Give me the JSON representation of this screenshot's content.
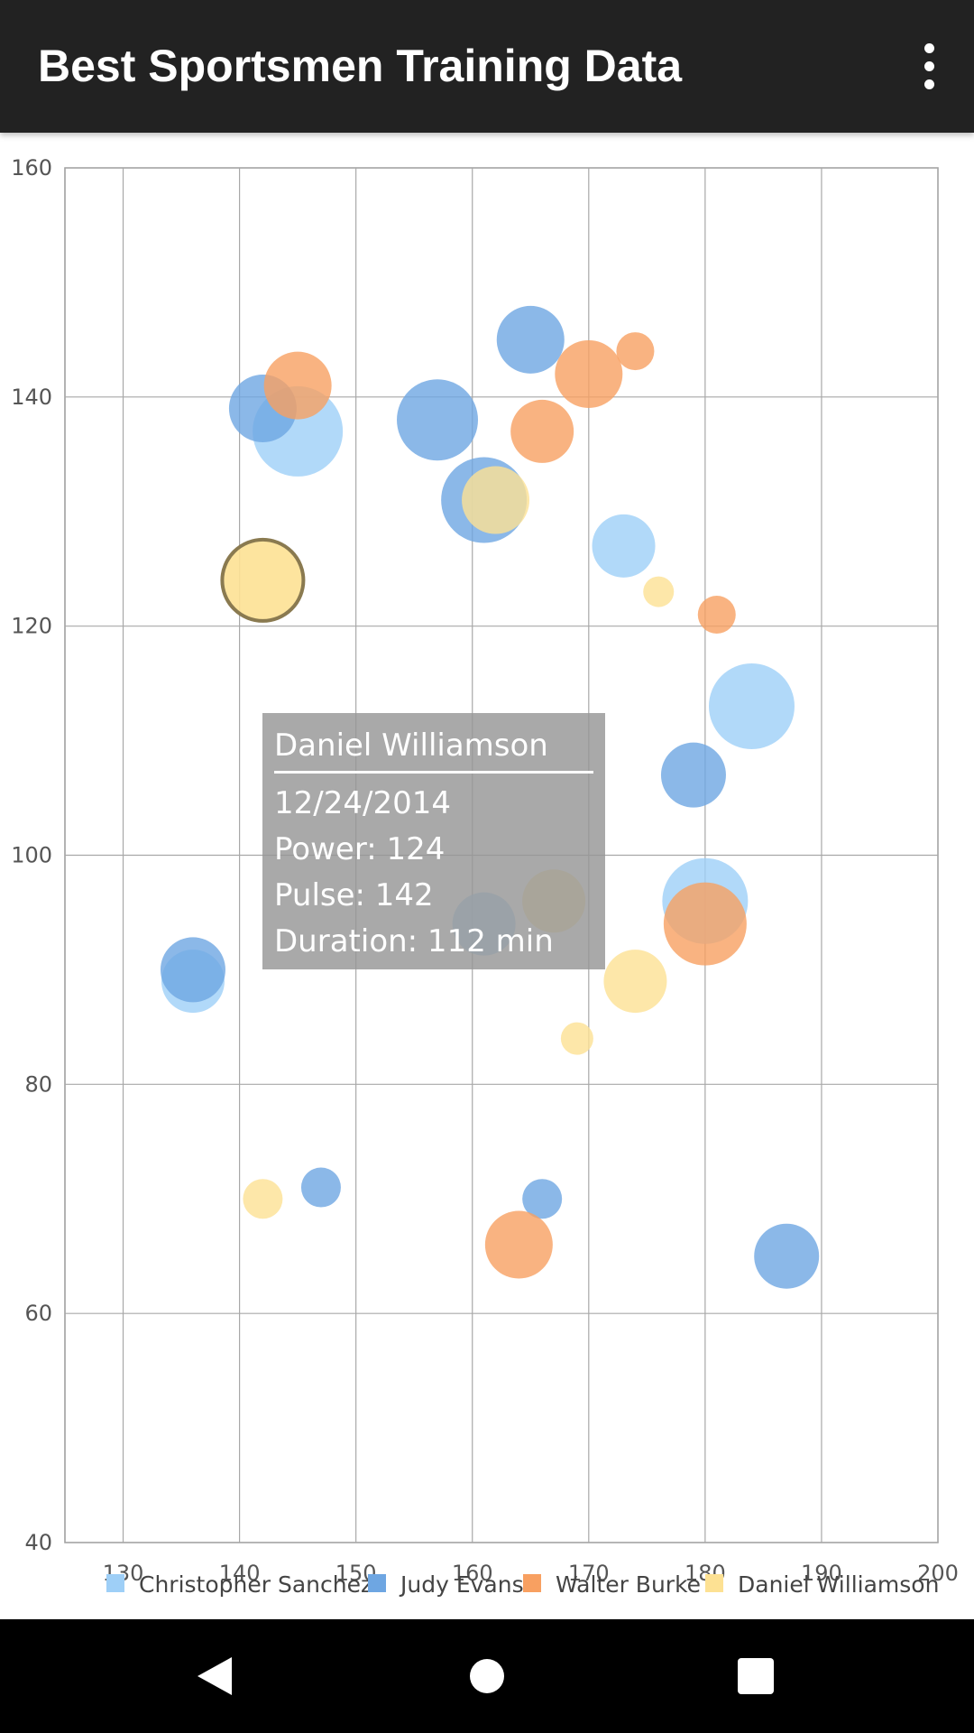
{
  "app_bar": {
    "title": "Best Sportsmen Training Data",
    "menu_icon": "more-vert-icon"
  },
  "chart_data": {
    "type": "bubble",
    "title": "",
    "xlabel": "",
    "ylabel": "",
    "xlim": [
      125,
      200
    ],
    "ylim": [
      40,
      160
    ],
    "xticks": [
      "130",
      "140",
      "150",
      "160",
      "170",
      "180",
      "190",
      "200"
    ],
    "yticks": [
      "40",
      "60",
      "80",
      "100",
      "120",
      "140",
      "160"
    ],
    "grid": true,
    "legend_position": "bottom",
    "series": [
      {
        "name": "Christopher Sanchez",
        "color": "#9ecff7",
        "points": [
          {
            "x": 145,
            "y": 137,
            "size": 100
          },
          {
            "x": 173,
            "y": 127,
            "size": 70
          },
          {
            "x": 184,
            "y": 113,
            "size": 95
          },
          {
            "x": 180,
            "y": 96,
            "size": 95
          },
          {
            "x": 161,
            "y": 94,
            "size": 70
          },
          {
            "x": 136,
            "y": 89,
            "size": 70
          }
        ]
      },
      {
        "name": "Judy Evans",
        "color": "#6ea6e2",
        "points": [
          {
            "x": 142,
            "y": 139,
            "size": 75
          },
          {
            "x": 157,
            "y": 138,
            "size": 90
          },
          {
            "x": 165,
            "y": 145,
            "size": 75
          },
          {
            "x": 161,
            "y": 131,
            "size": 95
          },
          {
            "x": 179,
            "y": 107,
            "size": 72
          },
          {
            "x": 136,
            "y": 90,
            "size": 72
          },
          {
            "x": 147,
            "y": 71,
            "size": 44
          },
          {
            "x": 166,
            "y": 70,
            "size": 44
          },
          {
            "x": 187,
            "y": 65,
            "size": 72
          }
        ]
      },
      {
        "name": "Walter Burke",
        "color": "#f8a061",
        "points": [
          {
            "x": 145,
            "y": 141,
            "size": 75
          },
          {
            "x": 170,
            "y": 142,
            "size": 75
          },
          {
            "x": 174,
            "y": 144,
            "size": 42
          },
          {
            "x": 166,
            "y": 137,
            "size": 70
          },
          {
            "x": 181,
            "y": 121,
            "size": 42
          },
          {
            "x": 180,
            "y": 94,
            "size": 92
          },
          {
            "x": 164,
            "y": 66,
            "size": 75
          }
        ]
      },
      {
        "name": "Daniel Williamson",
        "color": "#fde193",
        "points": [
          {
            "x": 142,
            "y": 124,
            "size": 90
          },
          {
            "x": 162,
            "y": 131,
            "size": 75
          },
          {
            "x": 176,
            "y": 123,
            "size": 34
          },
          {
            "x": 167,
            "y": 96,
            "size": 70
          },
          {
            "x": 174,
            "y": 89,
            "size": 70
          },
          {
            "x": 169,
            "y": 84,
            "size": 36
          },
          {
            "x": 142,
            "y": 70,
            "size": 44
          }
        ]
      }
    ],
    "highlighted": {
      "series": 3,
      "point": 0
    }
  },
  "tooltip": {
    "name": "Daniel Williamson",
    "date": "12/24/2014",
    "power": "Power: 124",
    "pulse": "Pulse: 142",
    "duration": "Duration: 112 min"
  },
  "nav_bar": {
    "back_icon": "back-triangle-icon",
    "home_icon": "home-circle-icon",
    "recent_icon": "recent-apps-square-icon"
  }
}
